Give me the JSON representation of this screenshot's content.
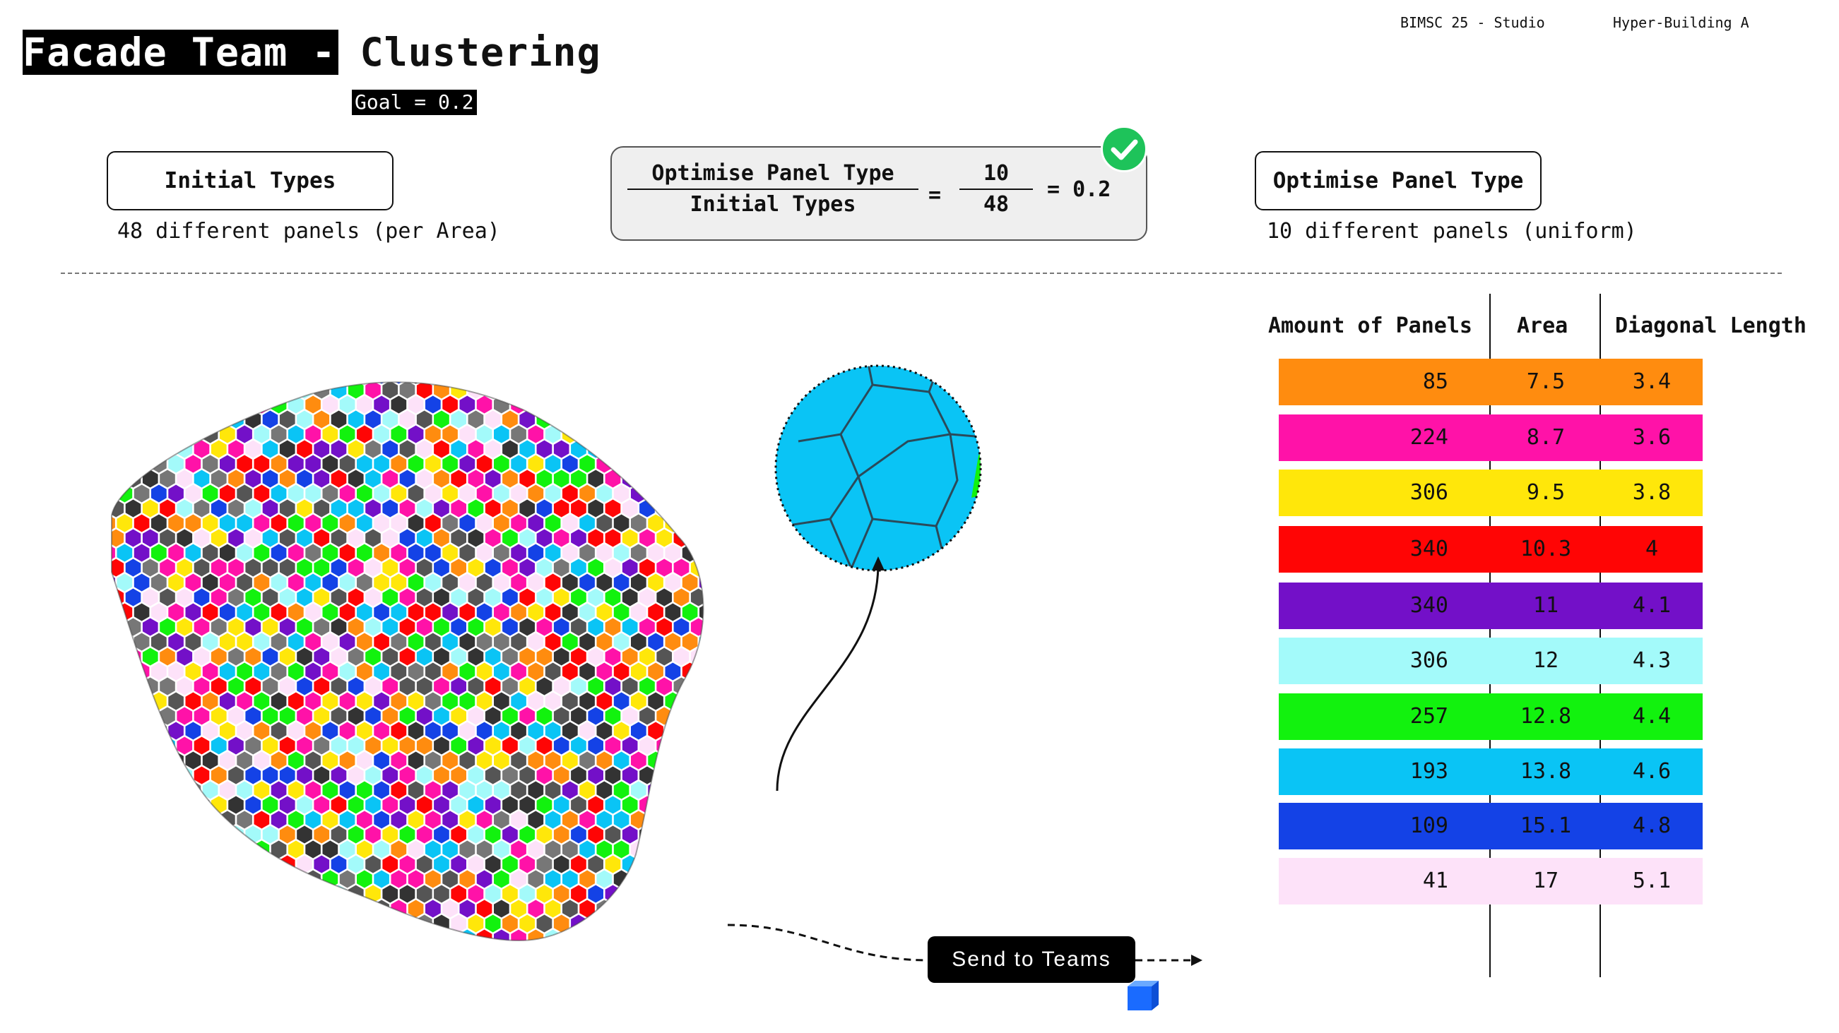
{
  "header": {
    "title_highlight": "Facade Team -",
    "title_rest": "Clustering",
    "goal": "Goal = 0.2",
    "studio": "BIMSC 25 - Studio",
    "project": "Hyper-Building A"
  },
  "initial": {
    "label": "Initial Types",
    "caption": "48 different panels (per Area)"
  },
  "equation": {
    "numerator_label": "Optimise Panel Type",
    "denominator_label": "Initial Types",
    "equals": "=",
    "num_value": "10",
    "den_value": "48",
    "result": "= 0.2",
    "status_icon": "check-circle-icon"
  },
  "optimised": {
    "label": "Optimise Panel Type",
    "caption": "10 different panels (uniform)"
  },
  "table": {
    "headers": [
      "Amount of Panels",
      "Area",
      "Diagonal Length"
    ],
    "rows": [
      {
        "amount": "85",
        "area": "7.5",
        "diag": "3.4",
        "color": "#ff8c0f"
      },
      {
        "amount": "224",
        "area": "8.7",
        "diag": "3.6",
        "color": "#ff12a8"
      },
      {
        "amount": "306",
        "area": "9.5",
        "diag": "3.8",
        "color": "#ffe70a"
      },
      {
        "amount": "340",
        "area": "10.3",
        "diag": "4",
        "color": "#ff0505"
      },
      {
        "amount": "340",
        "area": "11",
        "diag": "4.1",
        "color": "#7310c8"
      },
      {
        "amount": "306",
        "area": "12",
        "diag": "4.3",
        "color": "#a3fafa"
      },
      {
        "amount": "257",
        "area": "12.8",
        "diag": "4.4",
        "color": "#12f20e"
      },
      {
        "amount": "193",
        "area": "13.8",
        "diag": "4.6",
        "color": "#0ac4f5"
      },
      {
        "amount": "109",
        "area": "15.1",
        "diag": "4.8",
        "color": "#1442e6"
      },
      {
        "amount": "41",
        "area": "17",
        "diag": "5.1",
        "color": "#fde2f9"
      }
    ]
  },
  "send_button": "Send to Teams",
  "colors": {
    "panel_palette": [
      "#ff8c0f",
      "#ff12a8",
      "#ffe70a",
      "#ff0505",
      "#7310c8",
      "#a3fafa",
      "#12f20e",
      "#0ac4f5",
      "#1442e6",
      "#fde2f9",
      "#555555",
      "#777777",
      "#333333"
    ],
    "accent_check": "#1ec35a",
    "cube": "#1a6bff"
  }
}
